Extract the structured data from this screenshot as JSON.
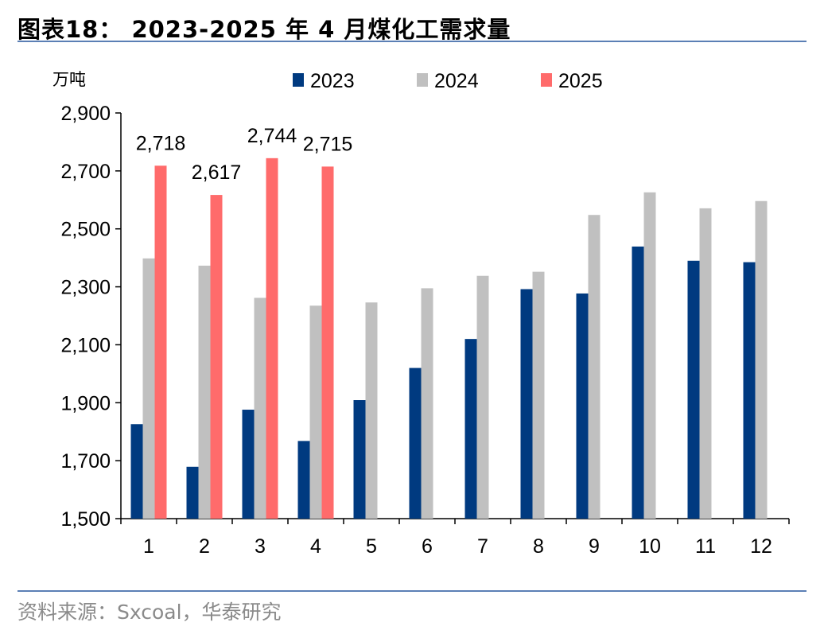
{
  "header": {
    "title": "图表18：  2023-2025 年 4 月煤化工需求量"
  },
  "footer": {
    "source": "资料来源：Sxcoal，华泰研究"
  },
  "colors": {
    "2023": "#003a80",
    "2024": "#c0c0c0",
    "2025": "#ff6b6b",
    "rule": "#5b7fb5"
  },
  "chart_data": {
    "type": "bar",
    "unit_label": "万吨",
    "categories": [
      "1",
      "2",
      "3",
      "4",
      "5",
      "6",
      "7",
      "8",
      "9",
      "10",
      "11",
      "12"
    ],
    "ylim": [
      1500,
      2900
    ],
    "yticks": [
      1500,
      1700,
      1900,
      2100,
      2300,
      2500,
      2700,
      2900
    ],
    "ytick_labels": [
      "1,500",
      "1,700",
      "1,900",
      "2,100",
      "2,300",
      "2,500",
      "2,700",
      "2,900"
    ],
    "legend_position": "top",
    "grid": false,
    "series": [
      {
        "name": "2023",
        "color": "#003a80",
        "values": [
          1826,
          1679,
          1876,
          1768,
          1909,
          2020,
          2120,
          2292,
          2277,
          2439,
          2390,
          2385
        ]
      },
      {
        "name": "2024",
        "color": "#c0c0c0",
        "values": [
          2398,
          2373,
          2262,
          2235,
          2246,
          2295,
          2338,
          2352,
          2548,
          2626,
          2571,
          2596
        ]
      },
      {
        "name": "2025",
        "color": "#ff6b6b",
        "values": [
          2718,
          2617,
          2744,
          2715,
          null,
          null,
          null,
          null,
          null,
          null,
          null,
          null
        ],
        "data_labels": [
          "2,718",
          "2,617",
          "2,744",
          "2,715",
          "",
          "",
          "",
          "",
          "",
          "",
          "",
          ""
        ]
      }
    ]
  }
}
